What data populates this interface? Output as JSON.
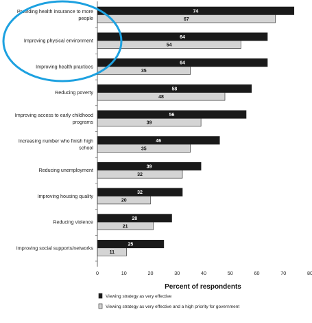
{
  "chart_data": {
    "type": "bar",
    "orientation": "horizontal",
    "categories": [
      [
        "Providing health insurance to more",
        "people"
      ],
      [
        "Improving physical environment"
      ],
      [
        "Improving health practices"
      ],
      [
        "Reducing poverty"
      ],
      [
        "Improving access to early childhood",
        "programs"
      ],
      [
        "Increasing number who finish high",
        "school"
      ],
      [
        "Reducing unemployment"
      ],
      [
        "Improving housing quality"
      ],
      [
        "Reducing violence"
      ],
      [
        "Improving social supports/networks"
      ]
    ],
    "series": [
      {
        "name": "Viewing strategy as very effective",
        "values": [
          74,
          64,
          64,
          58,
          56,
          46,
          39,
          32,
          28,
          25
        ],
        "color": "#1a1a1a",
        "label_color": "#ffffff"
      },
      {
        "name": "Viewing strategy as very effective and a high priority for government",
        "values": [
          67,
          54,
          35,
          48,
          39,
          35,
          32,
          20,
          21,
          11
        ],
        "color": "#d4d4d4",
        "label_color": "#111111"
      }
    ],
    "xlabel": "Percent of respondents",
    "xlim": [
      0,
      80
    ],
    "xticks": [
      0,
      10,
      20,
      30,
      40,
      50,
      60,
      70,
      80
    ],
    "legend_position": "bottom-left",
    "annotation": {
      "shape": "ellipse",
      "color": "#1da1e0",
      "highlights": "first two categories"
    }
  }
}
